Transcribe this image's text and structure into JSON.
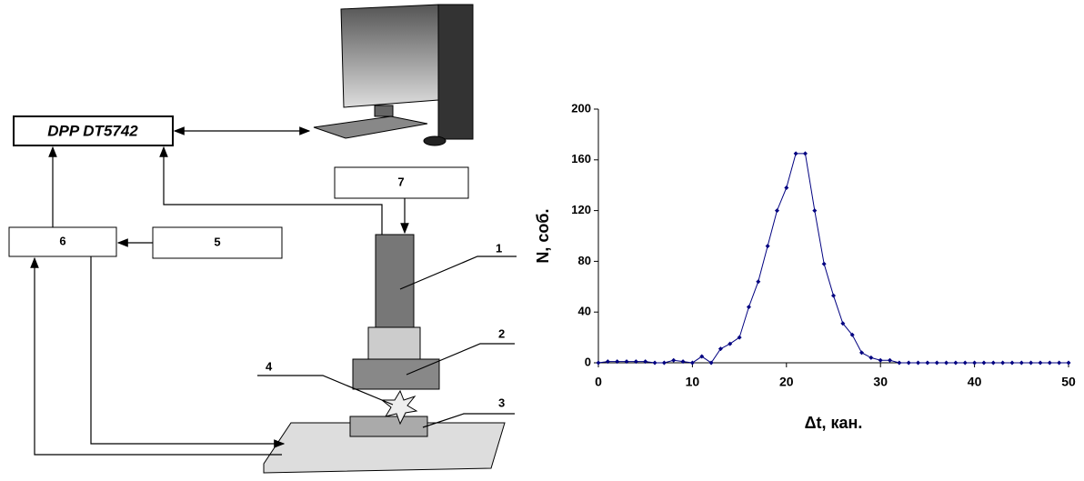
{
  "diagram": {
    "blocks": {
      "dpp": "DPP DT5742",
      "b7": "7",
      "b6": "6",
      "b5": "5"
    },
    "callouts": {
      "c1": "1",
      "c2": "2",
      "c3": "3",
      "c4": "4"
    }
  },
  "chart_data": {
    "type": "line",
    "xlabel": "Δt, кан.",
    "ylabel": "N, соб.",
    "x": [
      0,
      1,
      2,
      3,
      4,
      5,
      6,
      7,
      8,
      9,
      10,
      11,
      12,
      13,
      14,
      15,
      16,
      17,
      18,
      19,
      20,
      21,
      22,
      23,
      24,
      25,
      26,
      27,
      28,
      29,
      30,
      31,
      32,
      33,
      34,
      35,
      36,
      37,
      38,
      39,
      40,
      41,
      42,
      43,
      44,
      45,
      46,
      47,
      48,
      49,
      50
    ],
    "series": [
      {
        "color": "#000080",
        "values": [
          0,
          1,
          1,
          1,
          1,
          1,
          0,
          0,
          2,
          1,
          0,
          5,
          0,
          11,
          15,
          20,
          44,
          64,
          92,
          120,
          138,
          165,
          165,
          120,
          78,
          53,
          31,
          22,
          8,
          4,
          2,
          2,
          0,
          0,
          0,
          0,
          0,
          0,
          0,
          0,
          0,
          0,
          0,
          0,
          0,
          0,
          0,
          0,
          0,
          0,
          0
        ]
      }
    ],
    "xlim": [
      0,
      50
    ],
    "xticks": [
      0,
      10,
      20,
      30,
      40,
      50
    ],
    "ylim": [
      0,
      200
    ],
    "yticks": [
      0,
      40,
      80,
      120,
      160,
      200
    ]
  }
}
